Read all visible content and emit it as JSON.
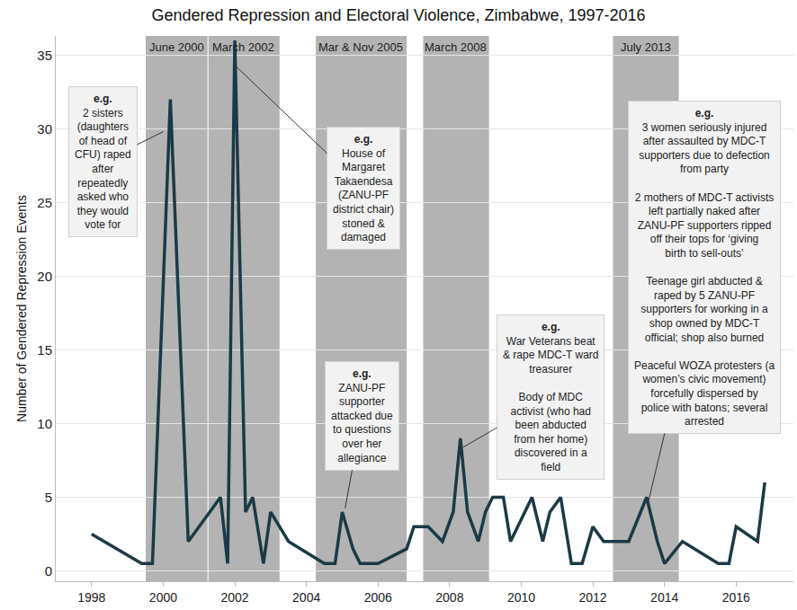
{
  "chart_data": {
    "type": "line",
    "title": "Gendered Repression and Electoral Violence, Zimbabwe, 1997-2016",
    "y_label": "Number of Gendered Repression Events",
    "x": [
      1998.0,
      1999.4,
      1999.7,
      2000.2,
      2000.7,
      2001.6,
      2001.8,
      2002.0,
      2002.3,
      2002.5,
      2002.8,
      2003.0,
      2003.5,
      2004.5,
      2004.8,
      2005.0,
      2005.3,
      2005.5,
      2006.0,
      2006.8,
      2007.0,
      2007.4,
      2007.8,
      2008.1,
      2008.3,
      2008.5,
      2008.8,
      2009.0,
      2009.2,
      2009.5,
      2009.7,
      2010.3,
      2010.6,
      2010.8,
      2011.1,
      2011.4,
      2011.7,
      2012.0,
      2012.3,
      2013.0,
      2013.5,
      2013.8,
      2014.0,
      2014.5,
      2015.5,
      2015.8,
      2016.0,
      2016.6,
      2016.8
    ],
    "values": [
      2.5,
      0.5,
      0.5,
      32,
      2,
      5,
      0.5,
      36,
      4,
      5,
      0.5,
      4,
      2,
      0.5,
      0.5,
      4,
      1.5,
      0.5,
      0.5,
      1.5,
      3,
      3,
      2,
      4,
      9,
      4,
      2,
      4,
      5,
      5,
      2,
      5,
      2,
      4,
      5,
      0.5,
      0.5,
      3,
      2,
      2,
      5,
      2,
      0.5,
      2,
      0.5,
      0.5,
      3,
      2,
      6
    ],
    "color": "#1b3a46",
    "xlim": [
      1997,
      2017.6
    ],
    "ylim": [
      -0.7,
      36.3
    ],
    "xticks": [
      1998,
      2000,
      2002,
      2004,
      2006,
      2008,
      2010,
      2012,
      2014,
      2016
    ],
    "yticks": [
      0,
      5,
      10,
      15,
      20,
      25,
      30,
      35
    ],
    "grid": true,
    "periods": [
      {
        "label": "June 2000",
        "start": 1999.5,
        "end": 2001.25
      },
      {
        "label": "March 2002",
        "start": 2001.25,
        "end": 2003.25
      },
      {
        "label": "Mar & Nov 2005",
        "start": 2004.25,
        "end": 2006.8
      },
      {
        "label": "March 2008",
        "start": 2007.25,
        "end": 2009.1
      },
      {
        "label": "July 2013",
        "start": 2012.55,
        "end": 2014.4
      }
    ],
    "annotations": [
      {
        "label": "e.g.",
        "x": 2000.0,
        "y": 29.8,
        "paragraphs": [
          [
            "2 sisters",
            "(daughters",
            "of head of",
            "CFU) raped",
            "after",
            "repeatedly",
            "asked who",
            "they would",
            "vote for"
          ]
        ]
      },
      {
        "label": "e.g.",
        "x": 2002.05,
        "y": 34.2,
        "paragraphs": [
          [
            "House of",
            "Margaret",
            "Takaendesa",
            "(ZANU-PF",
            "district chair)",
            "stoned &",
            "damaged"
          ]
        ]
      },
      {
        "label": "e.g.",
        "x": 2005.08,
        "y": 4.25,
        "paragraphs": [
          [
            "ZANU-PF",
            "supporter",
            "attacked due",
            "to questions",
            "over her",
            "allegiance"
          ]
        ]
      },
      {
        "label": "e.g.",
        "x": 2008.38,
        "y": 8.4,
        "paragraphs": [
          [
            "War Veterans beat",
            "& rape MDC-T ward",
            "treasurer"
          ],
          [
            "Body of MDC",
            "activist (who had",
            "been abducted",
            "from her home)",
            "discovered in a",
            "field"
          ]
        ]
      },
      {
        "label": "e.g.",
        "x": 2013.55,
        "y": 4.7,
        "paragraphs": [
          [
            "3 women seriously injured",
            "after assaulted by MDC-T",
            "supporters due to defection",
            "from party"
          ],
          [
            "2 mothers of MDC-T activists",
            "left partially naked after",
            "ZANU-PF supporters ripped",
            "off their tops for ‘giving",
            "birth to sell-outs’"
          ],
          [
            "Teenage girl abducted &",
            "raped by 5 ZANU-PF",
            "supporters for working in a",
            "shop owned by MDC-T",
            "official; shop also burned"
          ],
          [
            "Peaceful WOZA protesters (a",
            "women’s civic movement)",
            "forcefully dispersed by",
            "police with batons; several",
            "arrested"
          ]
        ]
      }
    ]
  }
}
